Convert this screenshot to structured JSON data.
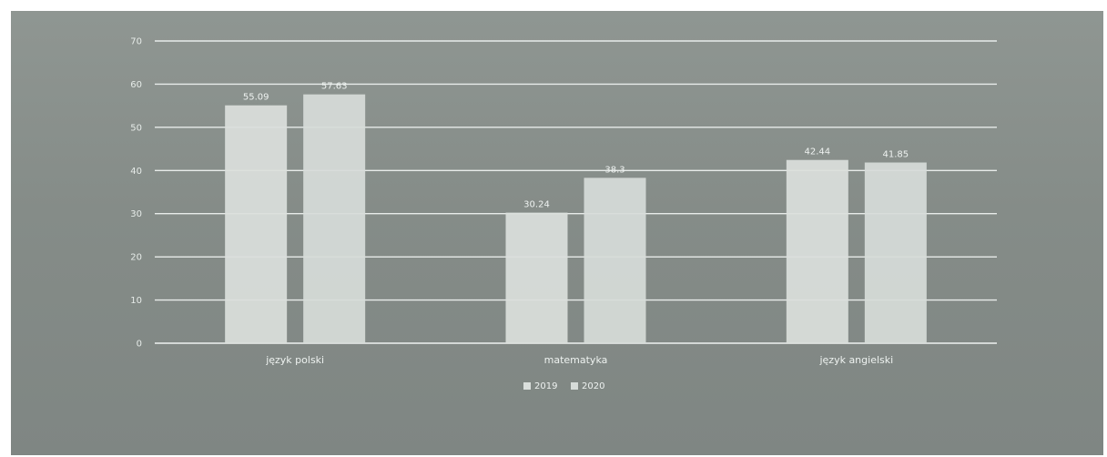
{
  "chart_data": {
    "type": "bar",
    "title": "",
    "xlabel": "",
    "ylabel": "",
    "categories": [
      "język polski",
      "matematyka",
      "język angielski"
    ],
    "series": [
      {
        "name": "2019",
        "values": [
          55.09,
          30.24,
          42.44
        ],
        "labels": [
          "55.09",
          "30.24",
          "42.44"
        ]
      },
      {
        "name": "2020",
        "values": [
          57.63,
          38.3,
          41.85
        ],
        "labels": [
          "57.63",
          "38.3",
          "41.85"
        ]
      }
    ],
    "ylim": [
      0,
      70
    ],
    "yticks": [
      0,
      10,
      20,
      30,
      40,
      50,
      60,
      70
    ],
    "grid": true,
    "legend": "bottom-center",
    "colors": {
      "series_2019": "#dadfdc",
      "series_2020": "#d6dbd8"
    }
  }
}
